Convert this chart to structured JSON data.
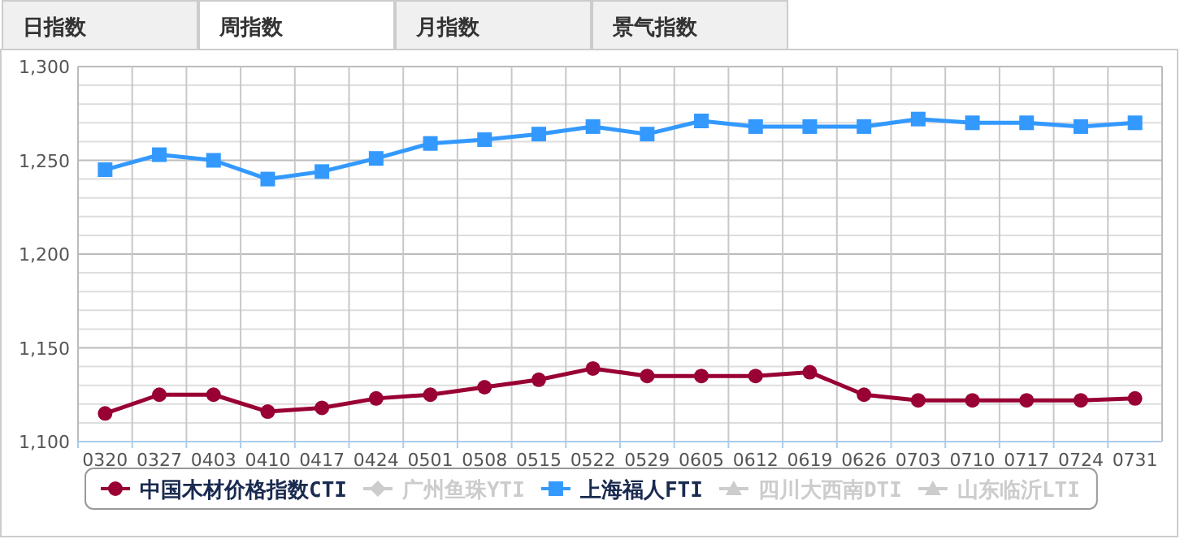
{
  "chart_data": {
    "type": "line",
    "annotations": [
      "日指数",
      "周指数",
      "月指数",
      "景气指数"
    ],
    "categories": [
      "0320",
      "0327",
      "0403",
      "0410",
      "0417",
      "0424",
      "0501",
      "0508",
      "0515",
      "0522",
      "0529",
      "0605",
      "0612",
      "0619",
      "0626",
      "0703",
      "0710",
      "0717",
      "0724",
      "0731"
    ],
    "ylim": [
      1100,
      1300
    ],
    "yticks": [
      {
        "value": 1100,
        "label": "1,100"
      },
      {
        "value": 1150,
        "label": "1,150"
      },
      {
        "value": 1200,
        "label": "1,200"
      },
      {
        "value": 1250,
        "label": "1,250"
      },
      {
        "value": 1300,
        "label": "1,300"
      }
    ],
    "grid": true,
    "legend": "bottom",
    "series": [
      {
        "name": "中国木材价格指数CTI",
        "color": "#990033",
        "marker": "circle",
        "values": [
          1115,
          1125,
          1125,
          1116,
          1118,
          1123,
          1125,
          1129,
          1133,
          1139,
          1135,
          1135,
          1135,
          1137,
          1125,
          1122,
          1122,
          1122,
          1122,
          1123
        ]
      },
      {
        "name": "广州鱼珠YTI",
        "color": "#cccccc",
        "marker": "diamond",
        "values": [
          null,
          null,
          null,
          null,
          null,
          null,
          null,
          null,
          null,
          null,
          null,
          null,
          null,
          null,
          null,
          null,
          null,
          null,
          null,
          null
        ]
      },
      {
        "name": "上海福人FTI",
        "color": "#3399ff",
        "marker": "square",
        "values": [
          1245,
          1253,
          1250,
          1240,
          1244,
          1251,
          1259,
          1261,
          1264,
          1268,
          1264,
          1271,
          1268,
          1268,
          1268,
          1272,
          1270,
          1270,
          1268,
          1270
        ]
      },
      {
        "name": "四川大西南DTI",
        "color": "#cccccc",
        "marker": "triangle",
        "values": [
          null,
          null,
          null,
          null,
          null,
          null,
          null,
          null,
          null,
          null,
          null,
          null,
          null,
          null,
          null,
          null,
          null,
          null,
          null,
          null
        ]
      },
      {
        "name": "山东临沂LTI",
        "color": "#cccccc",
        "marker": "triangle",
        "values": [
          null,
          null,
          null,
          null,
          null,
          null,
          null,
          null,
          null,
          null,
          null,
          null,
          null,
          null,
          null,
          null,
          null,
          null,
          null,
          null
        ]
      }
    ]
  }
}
